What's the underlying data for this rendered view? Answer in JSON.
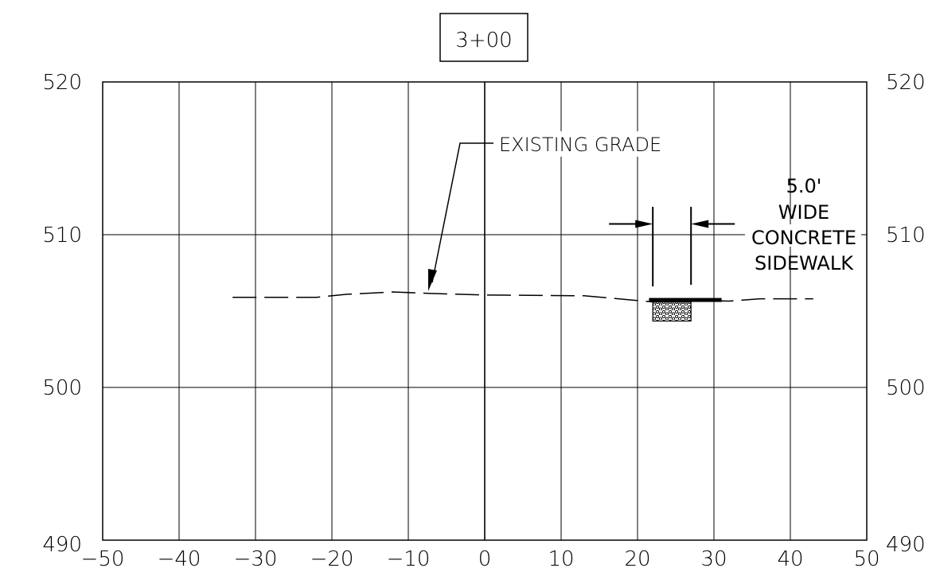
{
  "station_label": "3+00",
  "x_ticks": [
    -50,
    -40,
    -30,
    -20,
    -10,
    0,
    10,
    20,
    30,
    40,
    50
  ],
  "y_ticks": [
    490,
    500,
    510,
    520
  ],
  "annotations": {
    "existing_grade": "EXISTING GRADE",
    "sidewalk_width": "5.0'",
    "sidewalk_line1": "WIDE",
    "sidewalk_line2": "CONCRETE",
    "sidewalk_line3": "SIDEWALK"
  },
  "profile": {
    "existing_grade": [
      [
        -33,
        505.9
      ],
      [
        -22,
        505.9
      ],
      [
        -18,
        506.1
      ],
      [
        -12,
        506.25
      ],
      [
        -7,
        506.15
      ],
      [
        0,
        506.05
      ],
      [
        13,
        506.0
      ],
      [
        22,
        505.6
      ],
      [
        28,
        505.7
      ],
      [
        32,
        505.65
      ],
      [
        36,
        505.8
      ],
      [
        43,
        505.8
      ]
    ],
    "sidewalk": {
      "x_start": 21.5,
      "x_end": 31,
      "elev": 505.7
    },
    "dimension": {
      "x_left": 22,
      "x_right": 27,
      "elev": 510.7
    }
  },
  "colors": {
    "line": "#000000",
    "background": "#ffffff"
  }
}
